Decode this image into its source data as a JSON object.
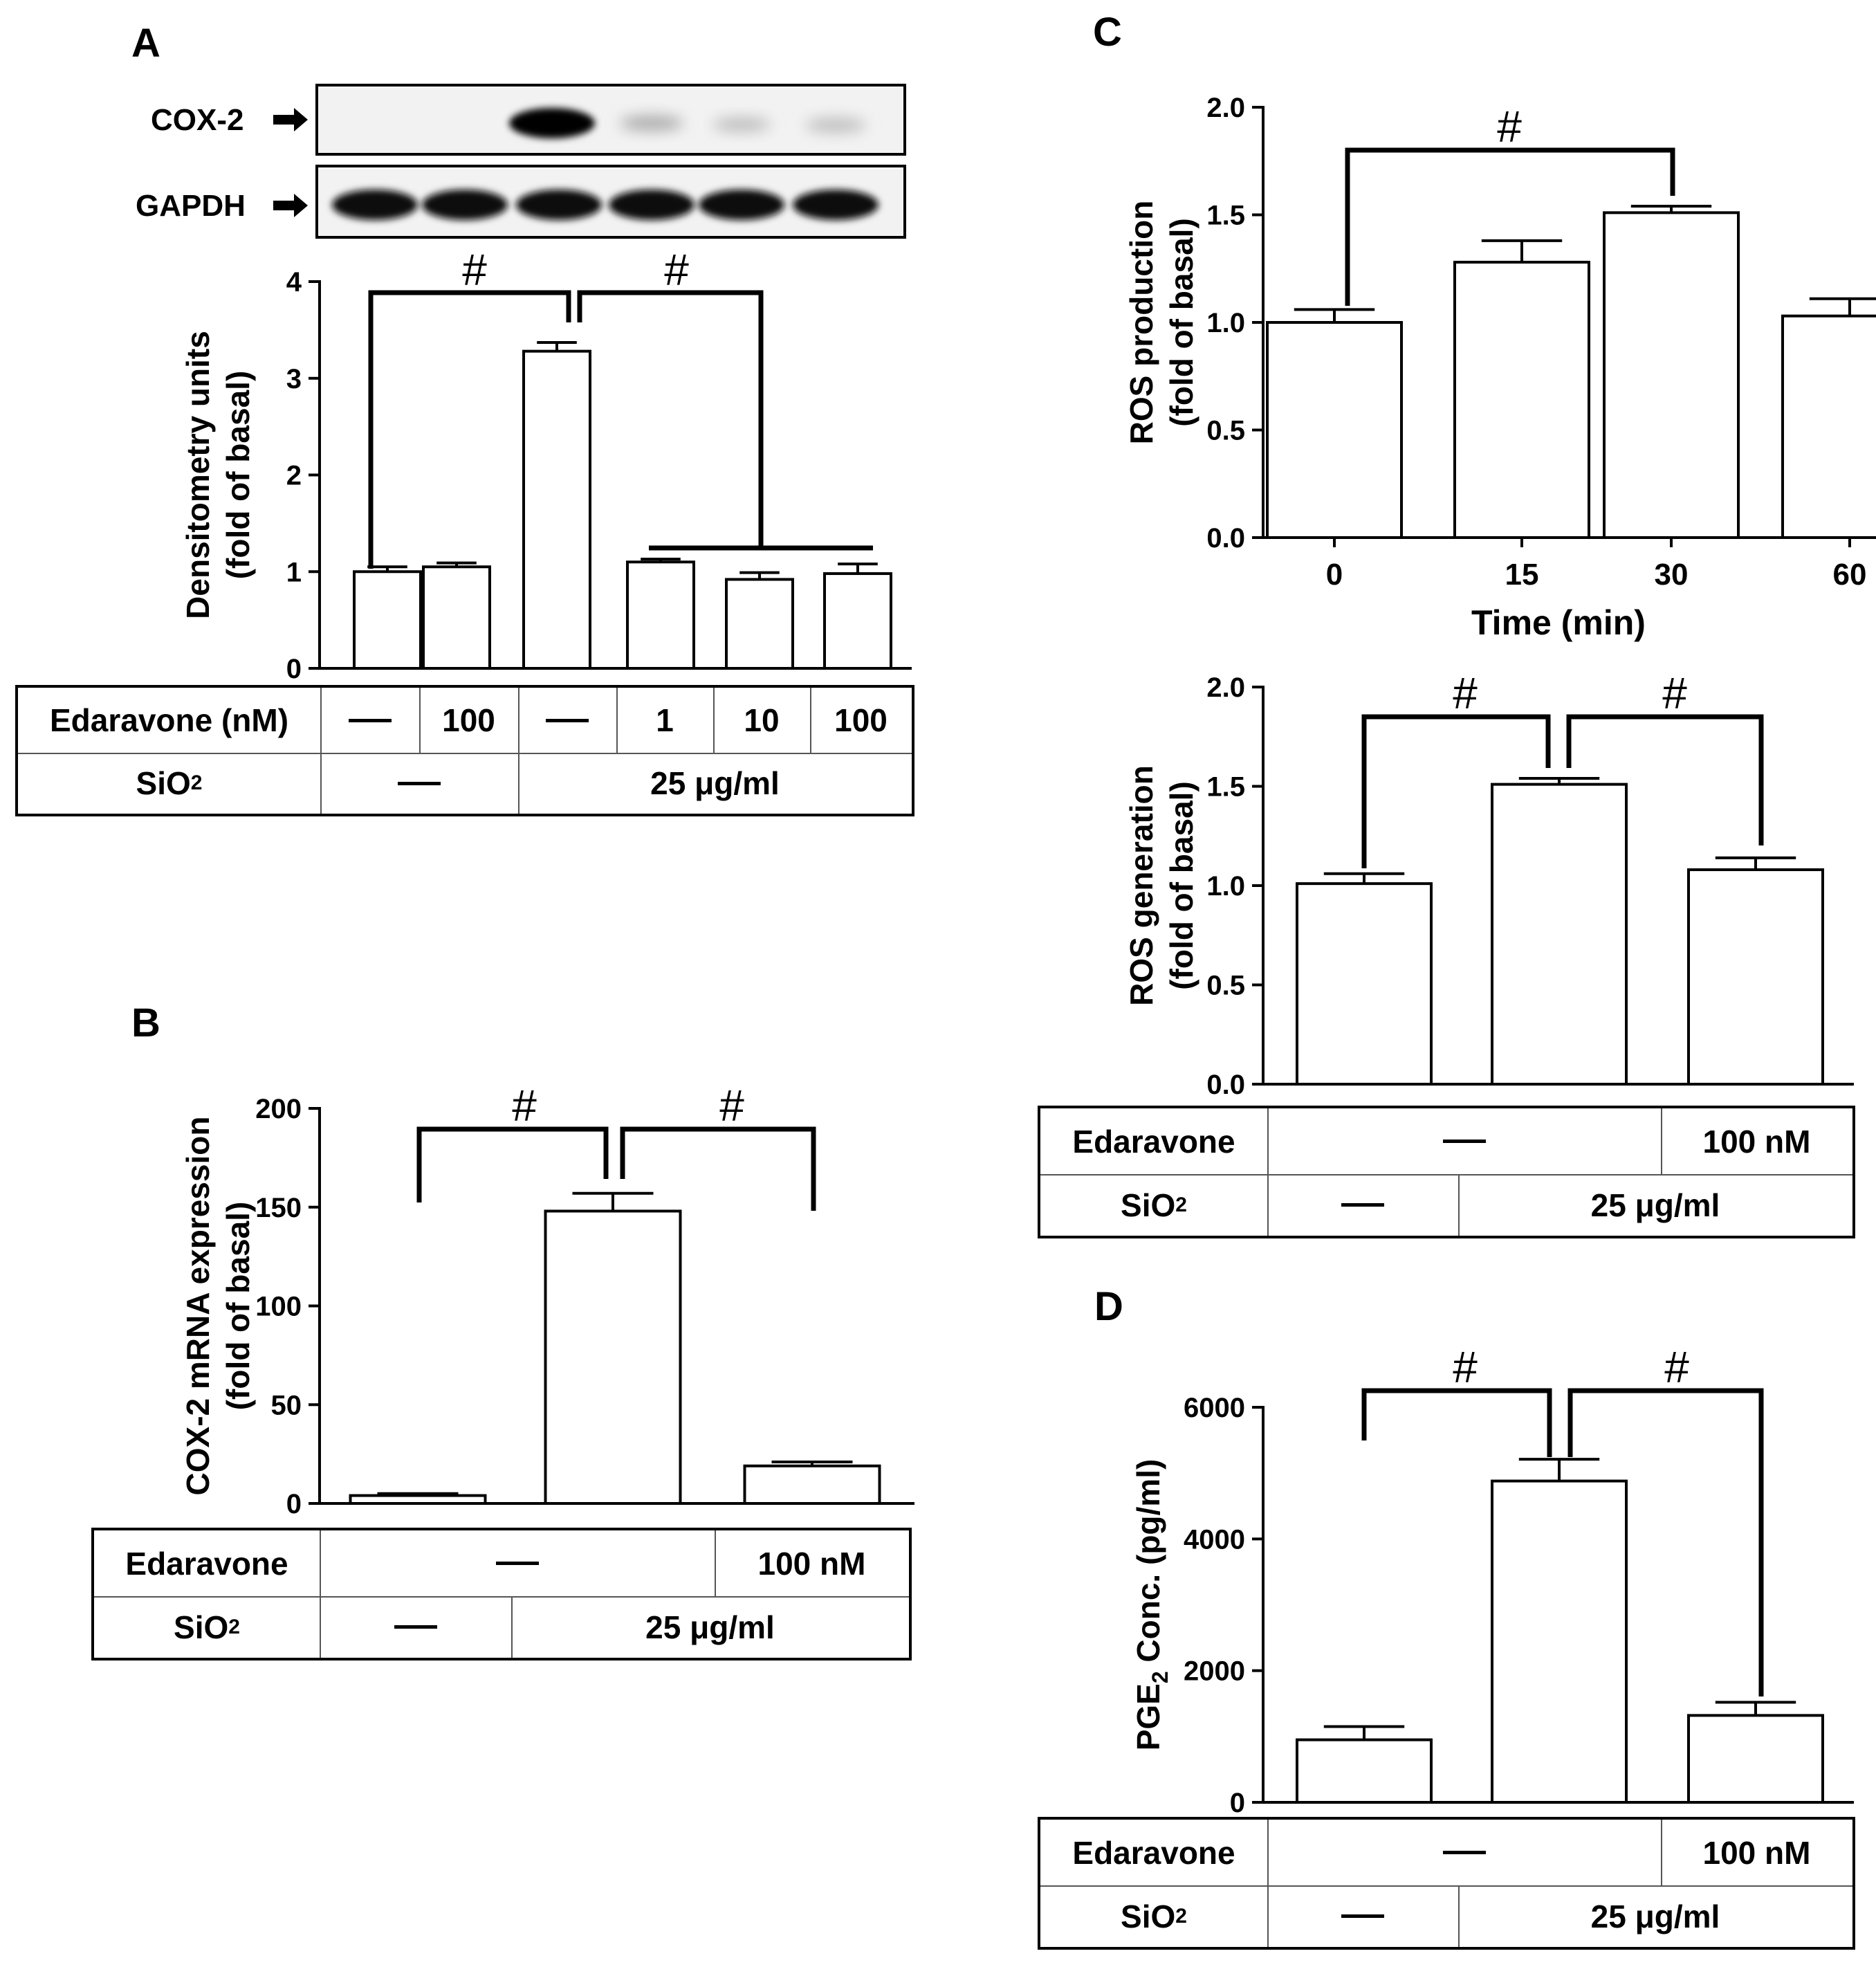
{
  "panels": {
    "A": {
      "letter": "A",
      "blot_labels": [
        "COX-2",
        "GAPDH"
      ],
      "table": {
        "row1_label": "Edaravone (nM)",
        "row1_values": [
          "—",
          "100",
          "—",
          "1",
          "10",
          "100"
        ],
        "row2_label": "SiO",
        "row2_sub": "2",
        "row2_none": "—",
        "row2_dose": "25 μg/ml"
      }
    },
    "B": {
      "letter": "B",
      "table": {
        "row1_label": "Edaravone",
        "row1_none": "—",
        "row1_dose": "100 nM",
        "row2_label": "SiO",
        "row2_sub": "2",
        "row2_none": "—",
        "row2_dose": "25 μg/ml"
      }
    },
    "C": {
      "letter": "C",
      "table": {
        "row1_label": "Edaravone",
        "row1_none": "—",
        "row1_dose": "100 nM",
        "row2_label": "SiO",
        "row2_sub": "2",
        "row2_none": "—",
        "row2_dose": "25 μg/ml"
      }
    },
    "D": {
      "letter": "D",
      "table": {
        "row1_label": "Edaravone",
        "row1_none": "—",
        "row1_dose": "100 nM",
        "row2_label": "SiO",
        "row2_sub": "2",
        "row2_none": "—",
        "row2_dose": "25 μg/ml"
      }
    }
  },
  "chart_data": [
    {
      "panel": "A",
      "type": "bar",
      "ylabel_lines": [
        "Densitometry units",
        "(fold of basal)"
      ],
      "ylim": [
        0,
        4
      ],
      "yticks": [
        "0",
        "1",
        "2",
        "3",
        "4"
      ],
      "values": [
        1.0,
        1.05,
        3.28,
        1.1,
        0.92,
        0.98
      ],
      "errors": [
        0.05,
        0.04,
        0.09,
        0.03,
        0.07,
        0.1
      ],
      "significance": "#"
    },
    {
      "panel": "B",
      "type": "bar",
      "ylabel_lines": [
        "COX-2 mRNA expression",
        "(fold of basal)"
      ],
      "ylim": [
        0,
        200
      ],
      "yticks": [
        "0",
        "50",
        "100",
        "150",
        "200"
      ],
      "values": [
        4,
        148,
        19
      ],
      "errors": [
        1,
        9,
        2
      ],
      "significance": "#"
    },
    {
      "panel": "C-top",
      "type": "bar",
      "ylabel_lines": [
        "ROS production",
        "(fold of basal)"
      ],
      "xlabel": "Time (min)",
      "categories": [
        "0",
        "15",
        "30",
        "60"
      ],
      "ylim": [
        0,
        2.0
      ],
      "yticks": [
        "0.0",
        "0.5",
        "1.0",
        "1.5",
        "2.0"
      ],
      "values": [
        1.0,
        1.28,
        1.51,
        1.03
      ],
      "errors": [
        0.06,
        0.1,
        0.03,
        0.08
      ],
      "significance": "#"
    },
    {
      "panel": "C-bottom",
      "type": "bar",
      "ylabel_lines": [
        "ROS generation",
        "(fold of basal)"
      ],
      "ylim": [
        0,
        2.0
      ],
      "yticks": [
        "0.0",
        "0.5",
        "1.0",
        "1.5",
        "2.0"
      ],
      "values": [
        1.01,
        1.51,
        1.08
      ],
      "errors": [
        0.05,
        0.03,
        0.06
      ],
      "significance": "#"
    },
    {
      "panel": "D",
      "type": "bar",
      "ylabel_main": "PGE",
      "ylabel_sub": "2",
      "ylabel_rest": " Conc. (pg/ml)",
      "ylim": [
        0,
        6000
      ],
      "yticks": [
        "0",
        "2000",
        "4000",
        "6000"
      ],
      "values": [
        950,
        4880,
        1320
      ],
      "errors": [
        200,
        330,
        200
      ],
      "significance": "#"
    }
  ]
}
